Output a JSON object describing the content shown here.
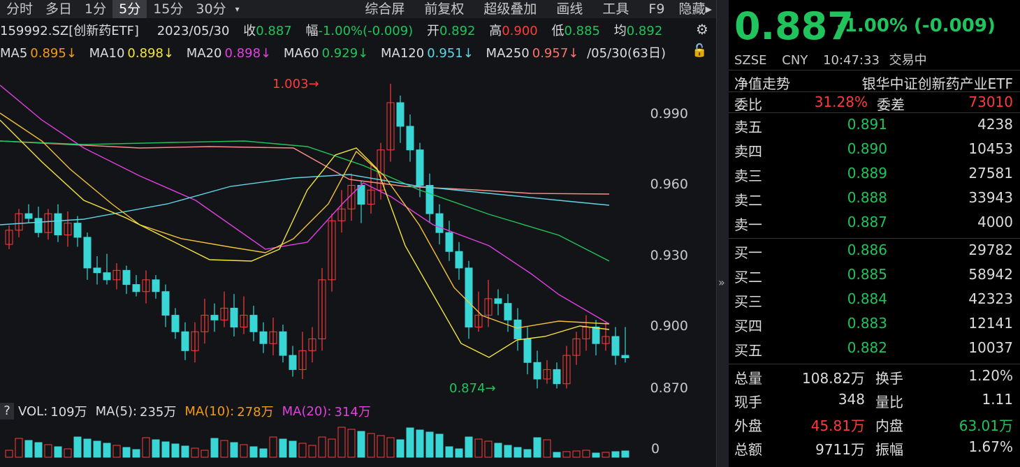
{
  "toolbar": {
    "periods": [
      "分时",
      "多日",
      "1分",
      "5分",
      "15分",
      "30分",
      "▾"
    ],
    "active": "5分",
    "tools": [
      "综合屏",
      "前复权",
      "超级叠加",
      "画线",
      "工具",
      "F9",
      "隐藏▸"
    ]
  },
  "info": {
    "code": "159992.SZ[创新药ETF]",
    "date": "2023/05/30",
    "close_label": "收",
    "close": "0.887",
    "change_label": "幅",
    "change": "-1.00%(-0.009)",
    "open_label": "开",
    "open": "0.892",
    "high_label": "高",
    "high": "0.900",
    "low_label": "低",
    "low": "0.885",
    "avg_label": "均",
    "avg": "0.892"
  },
  "ma": {
    "ma5_label": "MA5",
    "ma5": "0.895↓",
    "ma10_label": "MA10",
    "ma10": "0.898↓",
    "ma20_label": "MA20",
    "ma20": "0.898↓",
    "ma60_label": "MA60",
    "ma60": "0.929↓",
    "ma120_label": "MA120",
    "ma120": "0.951↓",
    "ma250_label": "MA250",
    "ma250": "0.957↓",
    "range": "/05/30(63日)"
  },
  "chart": {
    "yticks": [
      "0.990",
      "0.960",
      "0.930",
      "0.900",
      "0.870"
    ],
    "high_mark": "1.003",
    "low_mark": "0.874",
    "colors": {
      "up": "#ff3b3b",
      "down": "#3ad6d6",
      "ma5": "#f3e53b",
      "ma10": "#f3c23b",
      "ma20": "#e040e0",
      "ma60": "#21c35c",
      "ma120": "#5fd6e6",
      "ma250": "#ff8c8c"
    }
  },
  "volume": {
    "vol_label": "VOL:",
    "vol": "109万",
    "ma5_label": "MA(5):",
    "ma5": "235万",
    "ma10_label": "MA(10):",
    "ma10": "278万",
    "ma20_label": "MA(20):",
    "ma20": "314万",
    "zero": "0",
    "help": "?"
  },
  "quote": {
    "price": "0.887",
    "change": "-1.00% (-0.009)",
    "exchange": "SZSE",
    "currency": "CNY",
    "time": "10:47:33",
    "status": "交易中",
    "nav_label": "净值走势",
    "name": "银华中证创新药产业ETF",
    "wb_label": "委比",
    "wb": "31.28%",
    "wc_label": "委差",
    "wc": "73010",
    "asks": [
      {
        "label": "卖五",
        "price": "0.891",
        "vol": "4238"
      },
      {
        "label": "卖四",
        "price": "0.890",
        "vol": "10453"
      },
      {
        "label": "卖三",
        "price": "0.889",
        "vol": "27581"
      },
      {
        "label": "卖二",
        "price": "0.888",
        "vol": "33943"
      },
      {
        "label": "卖一",
        "price": "0.887",
        "vol": "4000"
      }
    ],
    "bids": [
      {
        "label": "买一",
        "price": "0.886",
        "vol": "29782"
      },
      {
        "label": "买二",
        "price": "0.885",
        "vol": "58942"
      },
      {
        "label": "买三",
        "price": "0.884",
        "vol": "42323"
      },
      {
        "label": "买四",
        "price": "0.883",
        "vol": "12141"
      },
      {
        "label": "买五",
        "price": "0.882",
        "vol": "10037"
      }
    ],
    "stats": [
      {
        "l1": "总量",
        "v1": "108.82万",
        "l2": "换手",
        "v2": "1.20%"
      },
      {
        "l1": "现手",
        "v1": "348",
        "l2": "量比",
        "v2": "1.11"
      },
      {
        "l1": "外盘",
        "v1": "45.81万",
        "l2": "内盘",
        "v2": "63.01万"
      },
      {
        "l1": "总额",
        "v1": "9711万",
        "l2": "振幅",
        "v2": "1.67%"
      }
    ]
  }
}
